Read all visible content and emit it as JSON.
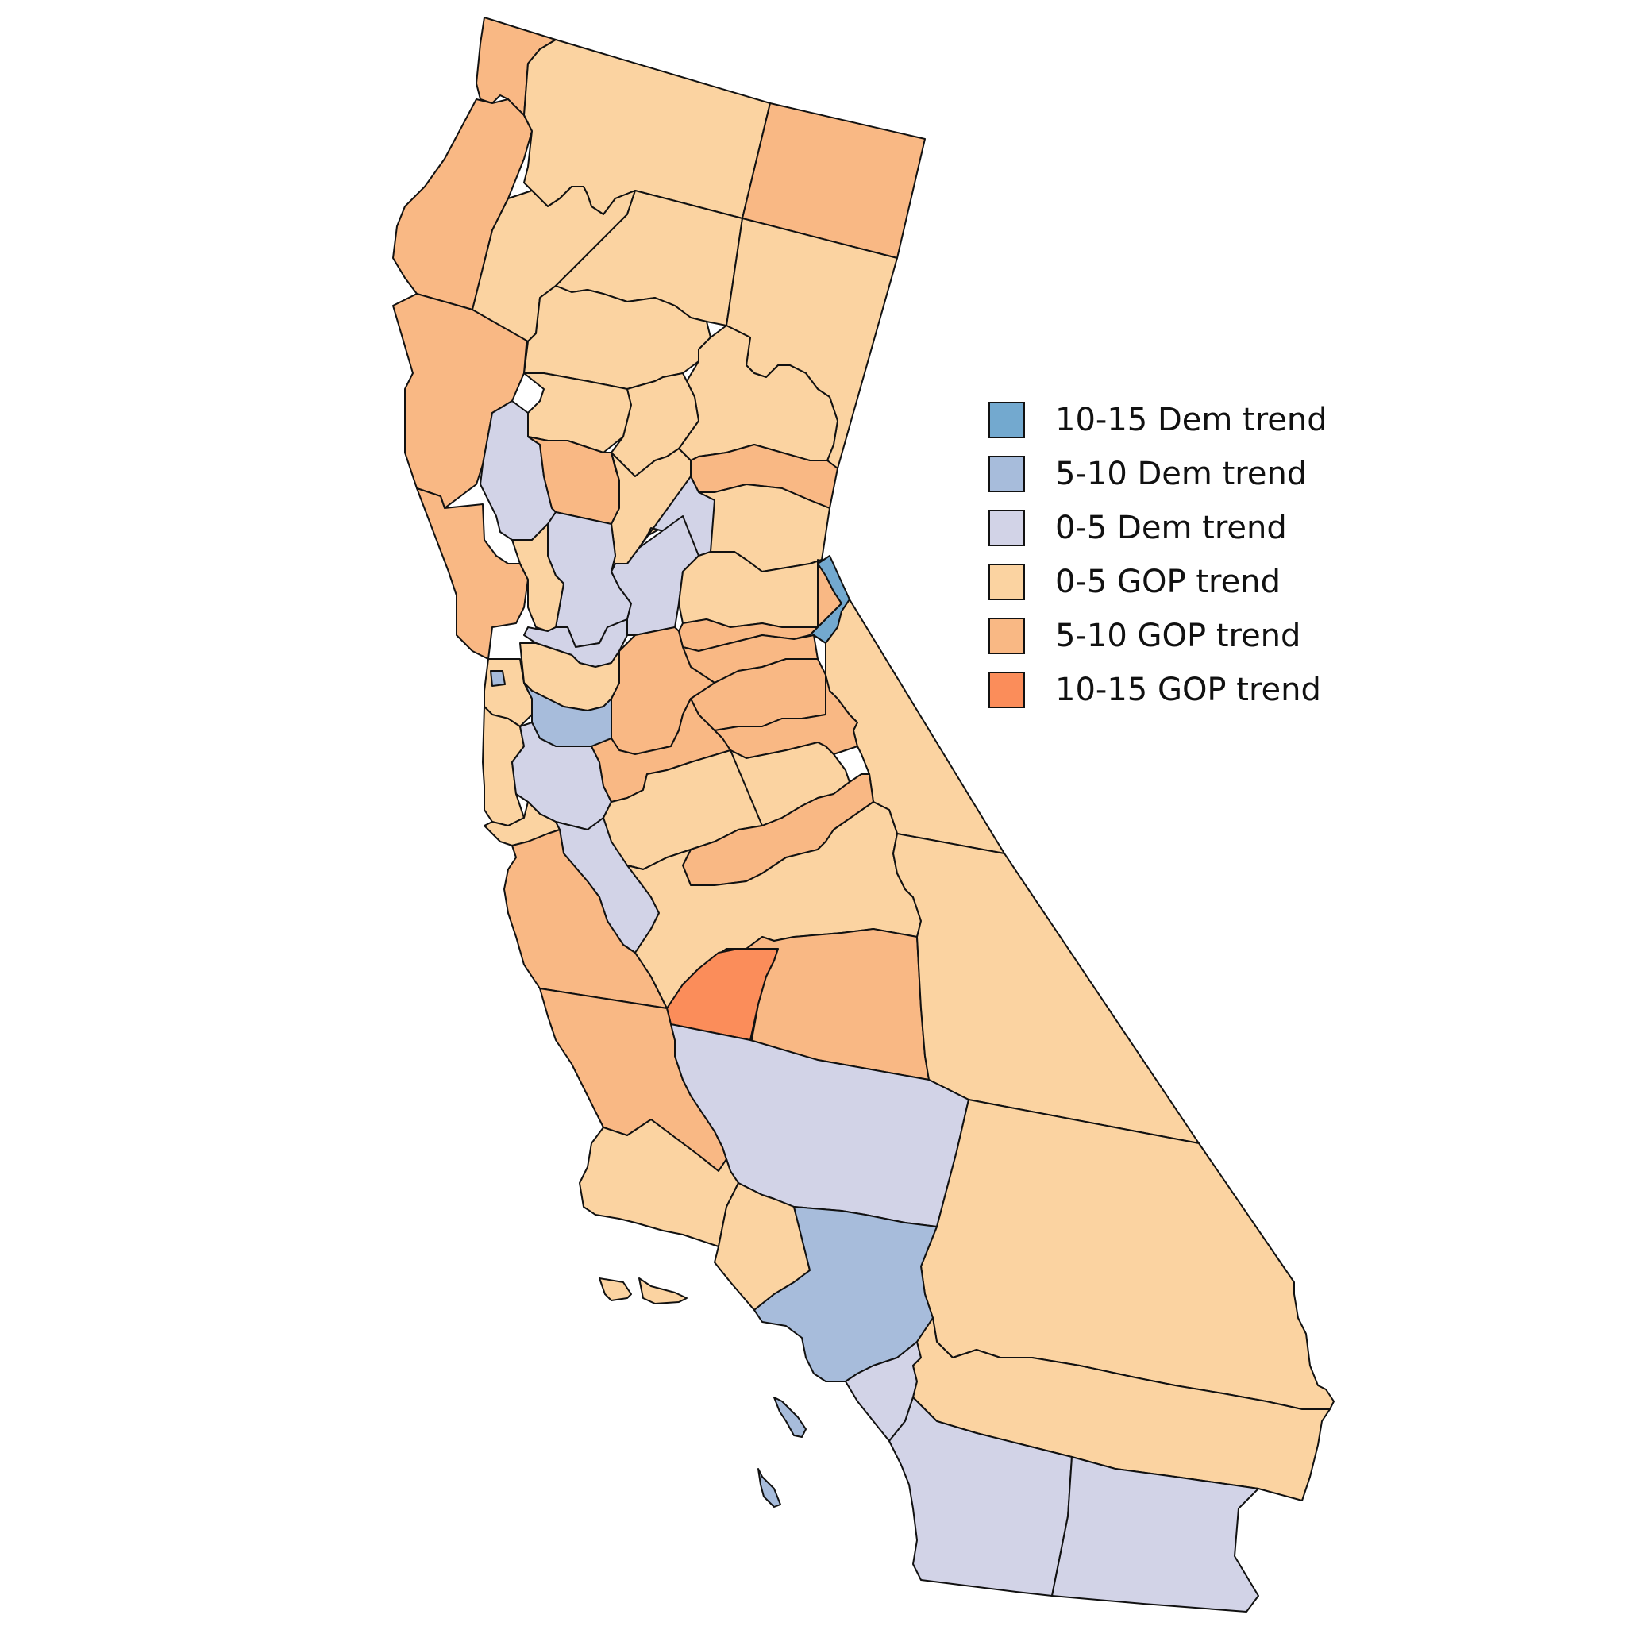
{
  "legend": [
    {
      "label": "10-15 Dem trend",
      "color": "#73a9cf"
    },
    {
      "label": "5-10 Dem trend",
      "color": "#a7bcdb"
    },
    {
      "label": "0-5 Dem trend",
      "color": "#d2d3e7"
    },
    {
      "label": "0-5 GOP trend",
      "color": "#fbd3a1"
    },
    {
      "label": "5-10 GOP trend",
      "color": "#f9b884"
    },
    {
      "label": "10-15 GOP trend",
      "color": "#fb8d5a"
    }
  ],
  "counties": [
    {
      "name": "Del Norte",
      "category": "5-10 GOP trend"
    },
    {
      "name": "Humboldt",
      "category": "5-10 GOP trend"
    },
    {
      "name": "Mendocino",
      "category": "5-10 GOP trend"
    },
    {
      "name": "Sonoma",
      "category": "5-10 GOP trend"
    },
    {
      "name": "Siskiyou",
      "category": "0-5 GOP trend"
    },
    {
      "name": "Modoc",
      "category": "5-10 GOP trend"
    },
    {
      "name": "Trinity",
      "category": "0-5 GOP trend"
    },
    {
      "name": "Shasta",
      "category": "0-5 GOP trend"
    },
    {
      "name": "Lassen",
      "category": "0-5 GOP trend"
    },
    {
      "name": "Tehama",
      "category": "0-5 GOP trend"
    },
    {
      "name": "Plumas",
      "category": "0-5 GOP trend"
    },
    {
      "name": "Glenn",
      "category": "0-5 GOP trend"
    },
    {
      "name": "Butte",
      "category": "0-5 GOP trend"
    },
    {
      "name": "Lake",
      "category": "0-5 Dem trend"
    },
    {
      "name": "Colusa",
      "category": "5-10 GOP trend"
    },
    {
      "name": "Sierra",
      "category": "5-10 GOP trend"
    },
    {
      "name": "Nevada",
      "category": "0-5 GOP trend"
    },
    {
      "name": "Sutter",
      "category": "0-5 GOP trend"
    },
    {
      "name": "Yuba",
      "category": "0-5 Dem trend"
    },
    {
      "name": "Yolo",
      "category": "0-5 Dem trend"
    },
    {
      "name": "Napa",
      "category": "0-5 GOP trend"
    },
    {
      "name": "Solano",
      "category": "0-5 Dem trend"
    },
    {
      "name": "Sacramento",
      "category": "0-5 Dem trend"
    },
    {
      "name": "Placer",
      "category": "0-5 GOP trend"
    },
    {
      "name": "El Dorado",
      "category": "5-10 GOP trend"
    },
    {
      "name": "Alpine",
      "category": "10-15 Dem trend"
    },
    {
      "name": "Amador",
      "category": "5-10 GOP trend"
    },
    {
      "name": "Calaveras",
      "category": "5-10 GOP trend"
    },
    {
      "name": "San Joaquin",
      "category": "5-10 GOP trend"
    },
    {
      "name": "Tuolumne",
      "category": "5-10 GOP trend"
    },
    {
      "name": "Mono",
      "category": "0-5 GOP trend"
    },
    {
      "name": "Marin",
      "category": "0-5 GOP trend"
    },
    {
      "name": "San Francisco",
      "category": "5-10 Dem trend"
    },
    {
      "name": "Contra Costa",
      "category": "0-5 GOP trend"
    },
    {
      "name": "Alameda",
      "category": "5-10 Dem trend"
    },
    {
      "name": "San Mateo",
      "category": "0-5 GOP trend"
    },
    {
      "name": "Santa Clara",
      "category": "0-5 Dem trend"
    },
    {
      "name": "Stanislaus",
      "category": "5-10 GOP trend"
    },
    {
      "name": "Merced",
      "category": "0-5 GOP trend"
    },
    {
      "name": "Mariposa",
      "category": "0-5 GOP trend"
    },
    {
      "name": "Madera",
      "category": "5-10 GOP trend"
    },
    {
      "name": "Santa Cruz",
      "category": "0-5 GOP trend"
    },
    {
      "name": "San Benito",
      "category": "0-5 Dem trend"
    },
    {
      "name": "Monterey",
      "category": "5-10 GOP trend"
    },
    {
      "name": "Fresno",
      "category": "0-5 GOP trend"
    },
    {
      "name": "Kings",
      "category": "10-15 GOP trend"
    },
    {
      "name": "Tulare",
      "category": "5-10 GOP trend"
    },
    {
      "name": "Inyo",
      "category": "0-5 GOP trend"
    },
    {
      "name": "San Luis Obispo",
      "category": "5-10 GOP trend"
    },
    {
      "name": "Kern",
      "category": "0-5 Dem trend"
    },
    {
      "name": "San Bernardino",
      "category": "0-5 GOP trend"
    },
    {
      "name": "Santa Barbara",
      "category": "0-5 GOP trend"
    },
    {
      "name": "Ventura",
      "category": "0-5 GOP trend"
    },
    {
      "name": "Los Angeles",
      "category": "5-10 Dem trend"
    },
    {
      "name": "Orange",
      "category": "0-5 Dem trend"
    },
    {
      "name": "Riverside",
      "category": "0-5 GOP trend"
    },
    {
      "name": "San Diego",
      "category": "0-5 Dem trend"
    },
    {
      "name": "Imperial",
      "category": "0-5 Dem trend"
    },
    {
      "name": "Santa Barbara Islands",
      "category": "0-5 GOP trend"
    },
    {
      "name": "Los Angeles Islands",
      "category": "5-10 Dem trend"
    }
  ]
}
